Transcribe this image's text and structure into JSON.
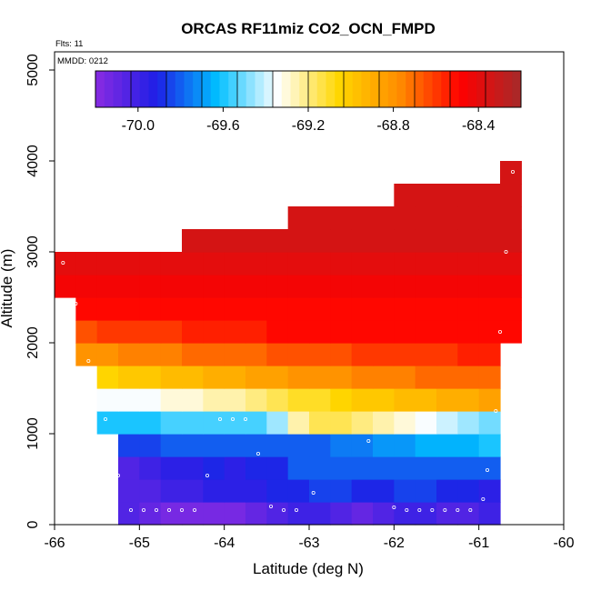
{
  "chart_data": {
    "type": "heatmap",
    "title": "ORCAS RF11miz CO2_OCN_FMPD",
    "annotations": [
      "Flts: 11",
      "MMDD: 0212"
    ],
    "xlabel": "Latitude (deg N)",
    "ylabel": "Altitude (m)",
    "xlim": [
      -66,
      -60
    ],
    "ylim": [
      0,
      5200
    ],
    "x_ticks": [
      "-66",
      "-65",
      "-64",
      "-63",
      "-62",
      "-61",
      "-60"
    ],
    "y_ticks": [
      "0",
      "1000",
      "2000",
      "3000",
      "4000",
      "5000"
    ],
    "colorbar": {
      "range": [
        -70.2,
        -68.2
      ],
      "tick_values": [
        -70.0,
        -69.6,
        -69.2,
        -68.8,
        -68.4
      ],
      "tick_labels": [
        "-70.0",
        "-69.6",
        "-69.2",
        "-68.8",
        "-68.4"
      ],
      "colors": [
        "#8a2be2",
        "#1e1ee6",
        "#00bfff",
        "#ffffff",
        "#ffd700",
        "#ff8c00",
        "#ff0000",
        "#a52a2a"
      ]
    },
    "cell_width_deg": 0.25,
    "cell_height_m": 250,
    "rows": [
      {
        "altitude_m": 125,
        "lat_start": -65.25,
        "values": [
          -70.05,
          -70.1,
          -70.15,
          -70.15,
          -70.15,
          -70.15,
          -70.1,
          -70.05,
          -70.0,
          -70.0,
          -70.05,
          -70.1,
          -70.05,
          -70.0,
          -70.0,
          -70.05,
          -70.05,
          -70.0
        ]
      },
      {
        "altitude_m": 375,
        "lat_start": -65.25,
        "values": [
          -70.05,
          -70.05,
          -70.0,
          -70.0,
          -69.95,
          -69.95,
          -69.95,
          -69.9,
          -69.9,
          -69.85,
          -69.85,
          -69.9,
          -69.9,
          -69.85,
          -69.85,
          -69.9,
          -69.9,
          -69.95
        ]
      },
      {
        "altitude_m": 625,
        "lat_start": -65.25,
        "values": [
          -70.05,
          -70.0,
          -69.95,
          -69.95,
          -69.9,
          -69.95,
          -69.9,
          -69.9,
          -69.8,
          -69.8,
          -69.8,
          -69.8,
          -69.8,
          -69.8,
          -69.8,
          -69.8,
          -69.8,
          -69.8
        ]
      },
      {
        "altitude_m": 875,
        "lat_start": -65.25,
        "values": [
          -69.85,
          -69.85,
          -69.8,
          -69.8,
          -69.8,
          -69.8,
          -69.8,
          -69.8,
          -69.8,
          -69.8,
          -69.75,
          -69.75,
          -69.7,
          -69.7,
          -69.65,
          -69.65,
          -69.65,
          -69.6
        ]
      },
      {
        "altitude_m": 1125,
        "lat_start": -65.5,
        "values": [
          -69.6,
          -69.6,
          -69.6,
          -69.55,
          -69.55,
          -69.55,
          -69.55,
          -69.55,
          -69.45,
          -69.25,
          -69.15,
          -69.15,
          -69.2,
          -69.25,
          -69.3,
          -69.35,
          -69.4,
          -69.45,
          -69.5
        ]
      },
      {
        "altitude_m": 1375,
        "lat_start": -65.5,
        "values": [
          -69.35,
          -69.35,
          -69.35,
          -69.3,
          -69.3,
          -69.25,
          -69.25,
          -69.2,
          -69.15,
          -69.1,
          -69.1,
          -69.05,
          -69.0,
          -69.0,
          -68.95,
          -68.95,
          -68.9,
          -68.9,
          -68.85
        ]
      },
      {
        "altitude_m": 1625,
        "lat_start": -65.5,
        "values": [
          -69.05,
          -69.0,
          -69.0,
          -68.95,
          -68.95,
          -68.9,
          -68.9,
          -68.85,
          -68.85,
          -68.8,
          -68.8,
          -68.8,
          -68.75,
          -68.75,
          -68.75,
          -68.7,
          -68.7,
          -68.7,
          -68.7
        ]
      },
      {
        "altitude_m": 1875,
        "lat_start": -65.75,
        "values": [
          -68.8,
          -68.8,
          -68.75,
          -68.75,
          -68.75,
          -68.7,
          -68.7,
          -68.7,
          -68.7,
          -68.65,
          -68.65,
          -68.65,
          -68.65,
          -68.6,
          -68.6,
          -68.6,
          -68.6,
          -68.6,
          -68.55,
          -68.55
        ]
      },
      {
        "altitude_m": 2125,
        "lat_start": -65.75,
        "values": [
          -68.65,
          -68.6,
          -68.6,
          -68.6,
          -68.6,
          -68.55,
          -68.55,
          -68.55,
          -68.55,
          -68.5,
          -68.5,
          -68.5,
          -68.5,
          -68.5,
          -68.5,
          -68.5,
          -68.5,
          -68.5,
          -68.5,
          -68.5,
          -68.5
        ]
      },
      {
        "altitude_m": 2375,
        "lat_start": -65.75,
        "values": [
          -68.5,
          -68.5,
          -68.5,
          -68.5,
          -68.5,
          -68.5,
          -68.5,
          -68.5,
          -68.5,
          -68.5,
          -68.5,
          -68.5,
          -68.5,
          -68.5,
          -68.5,
          -68.5,
          -68.5,
          -68.5,
          -68.5,
          -68.5,
          -68.5
        ]
      },
      {
        "altitude_m": 2625,
        "lat_start": -66.0,
        "values": [
          -68.45,
          -68.45,
          -68.45,
          -68.45,
          -68.45,
          -68.45,
          -68.45,
          -68.45,
          -68.45,
          -68.45,
          -68.45,
          -68.45,
          -68.45,
          -68.45,
          -68.45,
          -68.45,
          -68.45,
          -68.45,
          -68.45,
          -68.45,
          -68.45,
          -68.45
        ]
      },
      {
        "altitude_m": 2875,
        "lat_start": -66.0,
        "values": [
          -68.4,
          -68.4,
          -68.4,
          -68.4,
          -68.4,
          -68.4,
          -68.4,
          -68.4,
          -68.4,
          -68.4,
          -68.4,
          -68.4,
          -68.4,
          -68.4,
          -68.4,
          -68.4,
          -68.4,
          -68.4,
          -68.4,
          -68.4,
          -68.4,
          -68.4
        ]
      },
      {
        "altitude_m": 3125,
        "lat_start": -64.5,
        "values": [
          -68.35,
          -68.35,
          -68.35,
          -68.35,
          -68.35,
          -68.35,
          -68.35,
          -68.35,
          -68.35,
          -68.35,
          -68.35,
          -68.35,
          -68.35,
          -68.35,
          -68.35,
          -68.35
        ]
      },
      {
        "altitude_m": 3375,
        "lat_start": -63.25,
        "values": [
          -68.35,
          -68.35,
          -68.35,
          -68.35,
          -68.35,
          -68.35,
          -68.35,
          -68.35,
          -68.35,
          -68.35,
          -68.35
        ]
      },
      {
        "altitude_m": 3625,
        "lat_start": -62.0,
        "values": [
          -68.35,
          -68.35,
          -68.35,
          -68.35,
          -68.35,
          -68.35
        ]
      },
      {
        "altitude_m": 3875,
        "lat_start": -60.75,
        "values": [
          -68.35
        ]
      }
    ],
    "observations": [
      [
        -65.9,
        2880
      ],
      [
        -65.75,
        2430
      ],
      [
        -65.6,
        1800
      ],
      [
        -65.4,
        1160
      ],
      [
        -65.25,
        540
      ],
      [
        -65.1,
        160
      ],
      [
        -64.95,
        160
      ],
      [
        -64.8,
        160
      ],
      [
        -64.65,
        160
      ],
      [
        -64.5,
        160
      ],
      [
        -64.35,
        160
      ],
      [
        -64.2,
        540
      ],
      [
        -64.05,
        1160
      ],
      [
        -63.9,
        1160
      ],
      [
        -63.75,
        1160
      ],
      [
        -63.6,
        780
      ],
      [
        -63.45,
        200
      ],
      [
        -63.3,
        160
      ],
      [
        -63.15,
        160
      ],
      [
        -62.95,
        350
      ],
      [
        -62.3,
        920
      ],
      [
        -62.0,
        190
      ],
      [
        -61.85,
        160
      ],
      [
        -61.7,
        160
      ],
      [
        -61.55,
        160
      ],
      [
        -61.4,
        160
      ],
      [
        -61.25,
        160
      ],
      [
        -61.1,
        160
      ],
      [
        -60.95,
        280
      ],
      [
        -60.9,
        600
      ],
      [
        -60.8,
        1250
      ],
      [
        -60.75,
        2120
      ],
      [
        -60.68,
        3000
      ],
      [
        -60.6,
        3880
      ]
    ]
  }
}
